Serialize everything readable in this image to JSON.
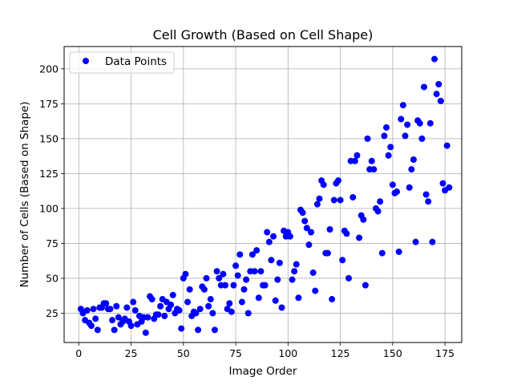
{
  "chart_data": {
    "type": "scatter",
    "title": "Cell Growth (Based on Cell Shape)",
    "xlabel": "Image Order",
    "ylabel": "Number of Cells (Based on Shape)",
    "xlim": [
      -7,
      183
    ],
    "ylim": [
      4,
      216
    ],
    "xticks": [
      0,
      25,
      50,
      75,
      100,
      125,
      150,
      175
    ],
    "yticks": [
      25,
      50,
      75,
      100,
      125,
      150,
      175,
      200
    ],
    "grid": true,
    "legend_position": "top-left",
    "marker_color": "#0000ff",
    "series": [
      {
        "name": "Data Points",
        "points": [
          [
            1,
            28
          ],
          [
            2,
            25
          ],
          [
            3,
            20
          ],
          [
            4,
            27
          ],
          [
            5,
            18
          ],
          [
            6,
            16
          ],
          [
            7,
            28
          ],
          [
            8,
            21
          ],
          [
            9,
            13
          ],
          [
            10,
            29
          ],
          [
            11,
            29
          ],
          [
            12,
            32
          ],
          [
            13,
            32
          ],
          [
            14,
            28
          ],
          [
            15,
            28
          ],
          [
            16,
            20
          ],
          [
            17,
            13
          ],
          [
            18,
            30
          ],
          [
            19,
            22
          ],
          [
            20,
            17
          ],
          [
            21,
            19
          ],
          [
            22,
            21
          ],
          [
            23,
            29
          ],
          [
            24,
            19
          ],
          [
            25,
            16
          ],
          [
            26,
            33
          ],
          [
            27,
            27
          ],
          [
            28,
            17
          ],
          [
            29,
            23
          ],
          [
            30,
            19
          ],
          [
            31,
            22
          ],
          [
            32,
            11
          ],
          [
            33,
            22
          ],
          [
            34,
            37
          ],
          [
            35,
            35
          ],
          [
            36,
            21
          ],
          [
            37,
            24
          ],
          [
            38,
            24
          ],
          [
            39,
            30
          ],
          [
            40,
            35
          ],
          [
            41,
            23
          ],
          [
            42,
            33
          ],
          [
            43,
            28
          ],
          [
            44,
            31
          ],
          [
            45,
            38
          ],
          [
            46,
            25
          ],
          [
            47,
            28
          ],
          [
            48,
            27
          ],
          [
            49,
            14
          ],
          [
            50,
            50
          ],
          [
            51,
            53
          ],
          [
            52,
            33
          ],
          [
            53,
            42
          ],
          [
            54,
            23
          ],
          [
            55,
            26
          ],
          [
            56,
            25
          ],
          [
            57,
            13
          ],
          [
            58,
            28
          ],
          [
            59,
            44
          ],
          [
            60,
            42
          ],
          [
            61,
            50
          ],
          [
            62,
            30
          ],
          [
            63,
            35
          ],
          [
            64,
            25
          ],
          [
            65,
            13
          ],
          [
            66,
            55
          ],
          [
            67,
            50
          ],
          [
            68,
            45
          ],
          [
            69,
            53
          ],
          [
            70,
            45
          ],
          [
            71,
            28
          ],
          [
            72,
            32
          ],
          [
            73,
            26
          ],
          [
            74,
            45
          ],
          [
            75,
            59
          ],
          [
            76,
            52
          ],
          [
            77,
            67
          ],
          [
            78,
            33
          ],
          [
            79,
            42
          ],
          [
            80,
            49
          ],
          [
            81,
            25
          ],
          [
            82,
            55
          ],
          [
            83,
            67
          ],
          [
            84,
            55
          ],
          [
            85,
            70
          ],
          [
            86,
            36
          ],
          [
            87,
            55
          ],
          [
            88,
            45
          ],
          [
            89,
            45
          ],
          [
            90,
            83
          ],
          [
            91,
            76
          ],
          [
            92,
            63
          ],
          [
            93,
            80
          ],
          [
            94,
            34
          ],
          [
            95,
            49
          ],
          [
            96,
            61
          ],
          [
            97,
            29
          ],
          [
            98,
            84
          ],
          [
            99,
            80
          ],
          [
            100,
            83
          ],
          [
            101,
            80
          ],
          [
            102,
            49
          ],
          [
            103,
            55
          ],
          [
            104,
            60
          ],
          [
            105,
            36
          ],
          [
            106,
            99
          ],
          [
            107,
            97
          ],
          [
            108,
            91
          ],
          [
            109,
            86
          ],
          [
            110,
            74
          ],
          [
            111,
            83
          ],
          [
            112,
            54
          ],
          [
            113,
            41
          ],
          [
            114,
            103
          ],
          [
            115,
            107
          ],
          [
            116,
            120
          ],
          [
            117,
            117
          ],
          [
            118,
            68
          ],
          [
            119,
            68
          ],
          [
            120,
            85
          ],
          [
            121,
            35
          ],
          [
            122,
            106
          ],
          [
            123,
            118
          ],
          [
            124,
            120
          ],
          [
            125,
            106
          ],
          [
            126,
            63
          ],
          [
            127,
            84
          ],
          [
            128,
            82
          ],
          [
            129,
            50
          ],
          [
            130,
            134
          ],
          [
            131,
            108
          ],
          [
            132,
            134
          ],
          [
            133,
            138
          ],
          [
            134,
            79
          ],
          [
            135,
            95
          ],
          [
            136,
            92
          ],
          [
            137,
            45
          ],
          [
            138,
            150
          ],
          [
            139,
            128
          ],
          [
            140,
            134
          ],
          [
            141,
            128
          ],
          [
            142,
            100
          ],
          [
            143,
            98
          ],
          [
            144,
            105
          ],
          [
            145,
            68
          ],
          [
            146,
            152
          ],
          [
            147,
            158
          ],
          [
            148,
            138
          ],
          [
            149,
            144
          ],
          [
            150,
            117
          ],
          [
            151,
            111
          ],
          [
            152,
            112
          ],
          [
            153,
            69
          ],
          [
            154,
            164
          ],
          [
            155,
            174
          ],
          [
            156,
            152
          ],
          [
            157,
            160
          ],
          [
            158,
            115
          ],
          [
            159,
            128
          ],
          [
            160,
            135
          ],
          [
            161,
            76
          ],
          [
            162,
            163
          ],
          [
            163,
            161
          ],
          [
            164,
            150
          ],
          [
            165,
            187
          ],
          [
            166,
            110
          ],
          [
            167,
            105
          ],
          [
            168,
            161
          ],
          [
            169,
            76
          ],
          [
            170,
            207
          ],
          [
            171,
            182
          ],
          [
            172,
            189
          ],
          [
            173,
            177
          ],
          [
            174,
            118
          ],
          [
            175,
            113
          ],
          [
            176,
            145
          ],
          [
            177,
            115
          ]
        ]
      }
    ]
  }
}
